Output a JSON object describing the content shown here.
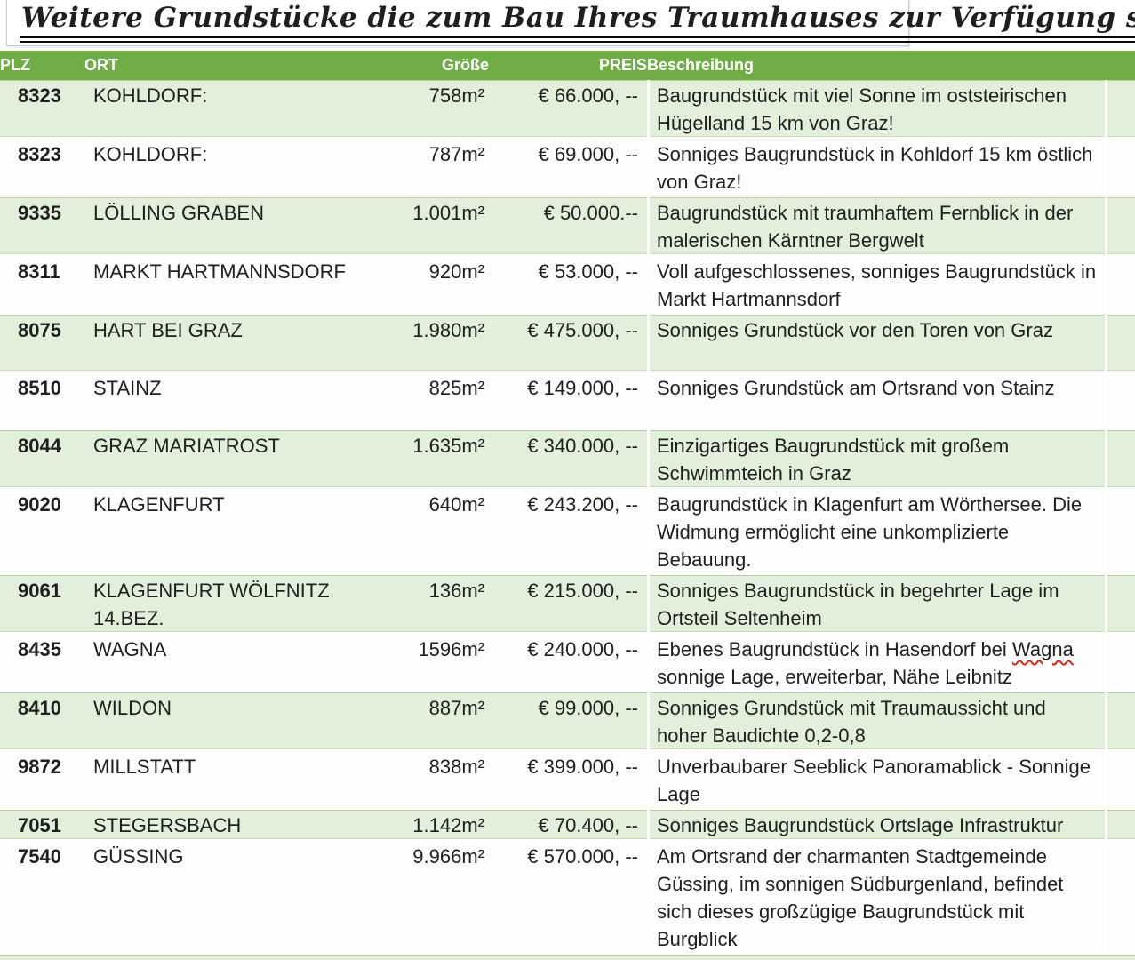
{
  "title": "Weitere Grundstücke die zum Bau Ihres Traumhauses zur Verfügung stehen",
  "colors": {
    "header_green": "#70AD47",
    "row_light_green": "#E2EFDA",
    "row_white": "#FFFFFF",
    "spellcheck_red": "#E0241A"
  },
  "columns": {
    "plz": "PLZ",
    "ort": "ORT",
    "size": "Größe",
    "price": "PREIS",
    "description": "Beschreibung"
  },
  "rows": [
    {
      "plz": "8323",
      "ort": "KOHLDORF:",
      "size": "758m²",
      "price": "€ 66.000, --",
      "description": "Baugrundstück mit viel Sonne im oststeirischen Hügelland 15 km von Graz!"
    },
    {
      "plz": "8323",
      "ort": "KOHLDORF:",
      "size": "787m²",
      "price": "€ 69.000, --",
      "description": "Sonniges Baugrundstück in Kohldorf 15 km östlich von Graz!"
    },
    {
      "plz": "9335",
      "ort": "LÖLLING GRABEN",
      "size": "1.001m²",
      "price": "€ 50.000.--",
      "description": "Baugrundstück mit traumhaftem Fernblick in der malerischen Kärntner Bergwelt"
    },
    {
      "plz": "8311",
      "ort": "MARKT HARTMANNSDORF",
      "size": "920m²",
      "price": "€ 53.000, --",
      "description": "Voll aufgeschlossenes, sonniges Baugrundstück in Markt Hartmannsdorf"
    },
    {
      "plz": "8075",
      "ort": "HART BEI GRAZ",
      "size": "1.980m²",
      "price": "€ 475.000, --",
      "description": "Sonniges Grundstück vor den Toren von Graz"
    },
    {
      "plz": "8510",
      "ort": "STAINZ",
      "size": "825m²",
      "price": "€ 149.000, --",
      "description": "Sonniges Grundstück am Ortsrand von Stainz"
    },
    {
      "plz": "8044",
      "ort": "GRAZ MARIATROST",
      "size": "1.635m²",
      "price": "€ 340.000, --",
      "description": "Einzigartiges Baugrundstück mit großem Schwimmteich in Graz"
    },
    {
      "plz": "9020",
      "ort": "KLAGENFURT",
      "size": "640m²",
      "price": "€ 243.200, --",
      "description": "Baugrundstück in Klagenfurt am Wörthersee. Die Widmung ermöglicht eine unkomplizierte Bebauung."
    },
    {
      "plz": "9061",
      "ort": "KLAGENFURT WÖLFNITZ\n14.BEZ.",
      "size": "136m²",
      "price": "€ 215.000, --",
      "description": "Sonniges Baugrundstück in begehrter Lage im Ortsteil Seltenheim"
    },
    {
      "plz": "8435",
      "ort": "WAGNA",
      "size": "1596m²",
      "price": "€ 240.000, --",
      "description": "Ebenes Baugrundstück in Hasendorf bei Wagna sonnige Lage, erweiterbar, Nähe Leibnitz",
      "spellcheck_word": "Wagna"
    },
    {
      "plz": "8410",
      "ort": "WILDON",
      "size": "887m²",
      "price": "€ 99.000, --",
      "description": "Sonniges Grundstück mit Traumaussicht und hoher Baudichte 0,2-0,8"
    },
    {
      "plz": "9872",
      "ort": "MILLSTATT",
      "size": "838m²",
      "price": "€ 399.000, --",
      "description": "Unverbaubarer Seeblick Panoramablick - Sonnige Lage"
    },
    {
      "plz": "7051",
      "ort": "STEGERSBACH",
      "size": "1.142m²",
      "price": "€ 70.400, --",
      "description": "Sonniges Baugrundstück Ortslage Infrastruktur"
    },
    {
      "plz": "7540",
      "ort": "GÜSSING",
      "size": "9.966m²",
      "price": "€ 570.000, --",
      "description": "Am Ortsrand der charmanten Stadtgemeinde Güssing, im sonnigen Südburgenland, befindet sich dieses großzügige Baugrundstück mit Burgblick"
    }
  ]
}
